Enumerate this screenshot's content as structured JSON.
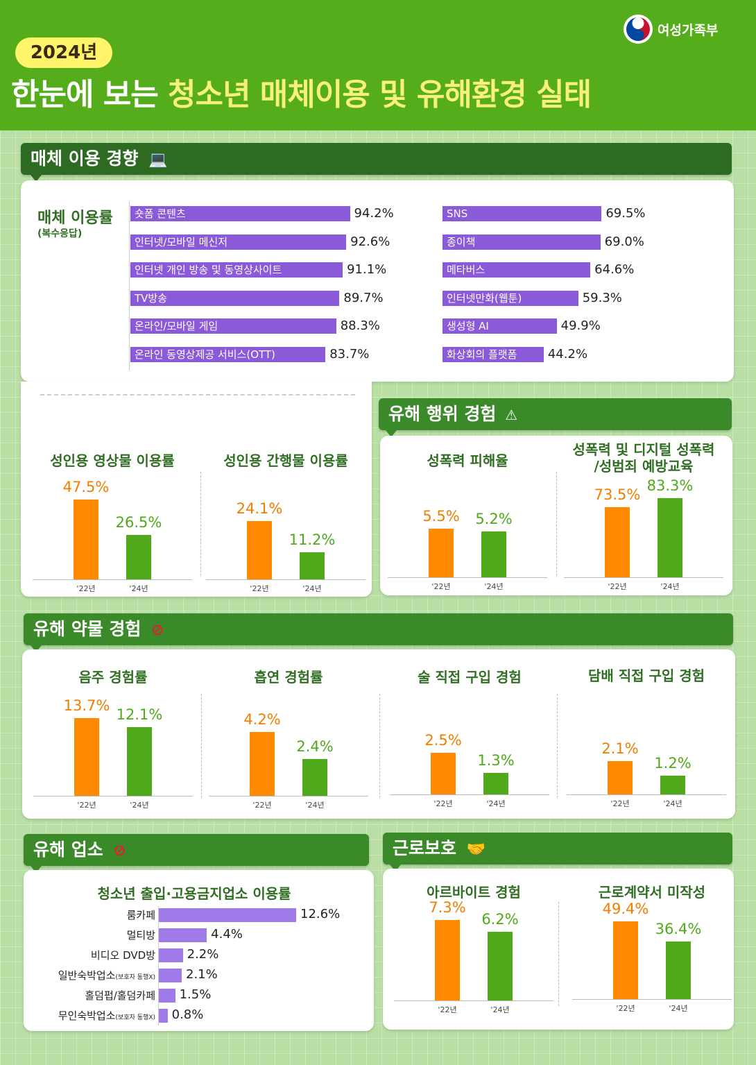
{
  "ministry": "여성가족부",
  "year_badge": "2024년",
  "title_white": "한눈에 보는",
  "title_yellow": "청소년 매체이용 및 유해환경 실태",
  "sec_media": "매체 이용 경향",
  "media_label": "매체 이용률",
  "media_sub": "(복수응답)",
  "sec_harm_act": "유해 행위 경험",
  "sec_drug": "유해 약물 경험",
  "sec_place": "유해 업소",
  "sec_labor": "근로보호",
  "colors": {
    "y22": "#ff8a00",
    "y24": "#4fa91a",
    "bar": "#8a5ad8",
    "text22": "#f07d00",
    "text24": "#4fa91a"
  },
  "chart_data": [
    {
      "type": "bar",
      "title": "매체 이용률",
      "orientation": "horizontal",
      "categories": [
        "숏폼 콘텐츠",
        "인터넷/모바일 메신저",
        "인터넷 개인 방송 및 동영상사이트",
        "TV방송",
        "온라인/모바일 게임",
        "온라인 동영상제공 서비스(OTT)"
      ],
      "values": [
        94.2,
        92.6,
        91.1,
        89.7,
        88.3,
        83.7
      ],
      "labels": [
        "94.2%",
        "92.6%",
        "91.1%",
        "89.7%",
        "88.3%",
        "83.7%"
      ]
    },
    {
      "type": "bar",
      "orientation": "horizontal",
      "categories": [
        "SNS",
        "종이책",
        "메타버스",
        "인터넷만화(웹툰)",
        "생성형 AI",
        "화상회의 플랫폼"
      ],
      "values": [
        69.5,
        69.0,
        64.6,
        59.3,
        49.9,
        44.2
      ],
      "labels": [
        "69.5%",
        "69.0%",
        "64.6%",
        "59.3%",
        "49.9%",
        "44.2%"
      ]
    },
    {
      "type": "bar",
      "title": "성인용 영상물 이용률",
      "categories": [
        "'22년",
        "'24년"
      ],
      "values": [
        47.5,
        26.5
      ],
      "labels": [
        "47.5%",
        "26.5%"
      ]
    },
    {
      "type": "bar",
      "title": "성인용 간행물 이용률",
      "categories": [
        "'22년",
        "'24년"
      ],
      "values": [
        24.1,
        11.2
      ],
      "labels": [
        "24.1%",
        "11.2%"
      ]
    },
    {
      "type": "bar",
      "title": "성폭력 피해율",
      "categories": [
        "'22년",
        "'24년"
      ],
      "values": [
        5.5,
        5.2
      ],
      "labels": [
        "5.5%",
        "5.2%"
      ]
    },
    {
      "type": "bar",
      "title": "성폭력 및 디지털 성폭력 /성범죄 예방교육",
      "title_lines": [
        "성폭력 및 디지털 성폭력",
        "/성범죄 예방교육"
      ],
      "categories": [
        "'22년",
        "'24년"
      ],
      "values": [
        73.5,
        83.3
      ],
      "labels": [
        "73.5%",
        "83.3%"
      ]
    },
    {
      "type": "bar",
      "title": "음주 경험률",
      "categories": [
        "'22년",
        "'24년"
      ],
      "values": [
        13.7,
        12.1
      ],
      "labels": [
        "13.7%",
        "12.1%"
      ]
    },
    {
      "type": "bar",
      "title": "흡연 경험률",
      "categories": [
        "'22년",
        "'24년"
      ],
      "values": [
        4.2,
        2.4
      ],
      "labels": [
        "4.2%",
        "2.4%"
      ]
    },
    {
      "type": "bar",
      "title": "술 직접 구입 경험",
      "categories": [
        "'22년",
        "'24년"
      ],
      "values": [
        2.5,
        1.3
      ],
      "labels": [
        "2.5%",
        "1.3%"
      ]
    },
    {
      "type": "bar",
      "title": "담배 직접 구입 경험",
      "categories": [
        "'22년",
        "'24년"
      ],
      "values": [
        2.1,
        1.2
      ],
      "labels": [
        "2.1%",
        "1.2%"
      ]
    },
    {
      "type": "bar",
      "title": "청소년 출입·고용금지업소 이용률",
      "orientation": "horizontal",
      "categories": [
        "룸카페",
        "멀티방",
        "비디오 DVD방",
        "일반숙박업소(보호자 동행X)",
        "홀덤펍/홀덤카페",
        "무인숙박업소(보호자 동행X)"
      ],
      "values": [
        12.6,
        4.4,
        2.2,
        2.1,
        1.5,
        0.8
      ],
      "labels": [
        "12.6%",
        "4.4%",
        "2.2%",
        "2.1%",
        "1.5%",
        "0.8%"
      ]
    },
    {
      "type": "bar",
      "title": "아르바이트 경험",
      "categories": [
        "'22년",
        "'24년"
      ],
      "values": [
        7.3,
        6.2
      ],
      "labels": [
        "7.3%",
        "6.2%"
      ]
    },
    {
      "type": "bar",
      "title": "근로계약서 미작성",
      "categories": [
        "'22년",
        "'24년"
      ],
      "values": [
        49.4,
        36.4
      ],
      "labels": [
        "49.4%",
        "36.4%"
      ]
    }
  ]
}
